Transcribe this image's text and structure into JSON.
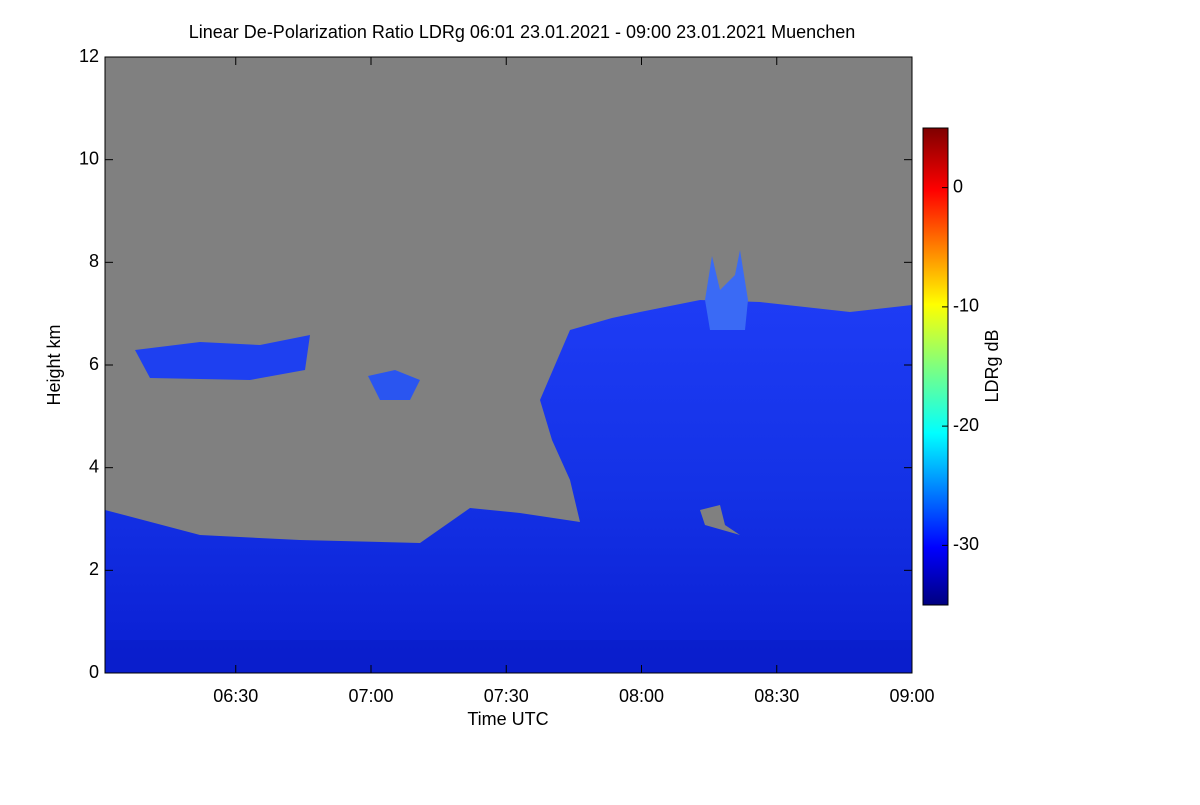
{
  "chart_data": {
    "type": "heatmap",
    "title": "Linear De-Polarization Ratio LDRg   06:01 23.01.2021 - 09:00 23.01.2021 Muenchen",
    "x_label": "Time UTC",
    "y_label": "Height km",
    "colorbar_label": "LDRg dB",
    "xlim": [
      361,
      540
    ],
    "xticks": [
      {
        "value": 390,
        "label": "06:30"
      },
      {
        "value": 420,
        "label": "07:00"
      },
      {
        "value": 450,
        "label": "07:30"
      },
      {
        "value": 480,
        "label": "08:00"
      },
      {
        "value": 510,
        "label": "08:30"
      },
      {
        "value": 540,
        "label": "09:00"
      }
    ],
    "ylim": [
      0,
      12
    ],
    "yticks": [
      0,
      2,
      4,
      6,
      8,
      10,
      12
    ],
    "clim": [
      -35,
      5
    ],
    "cticks": [
      -30,
      -20,
      -10,
      0
    ]
  }
}
